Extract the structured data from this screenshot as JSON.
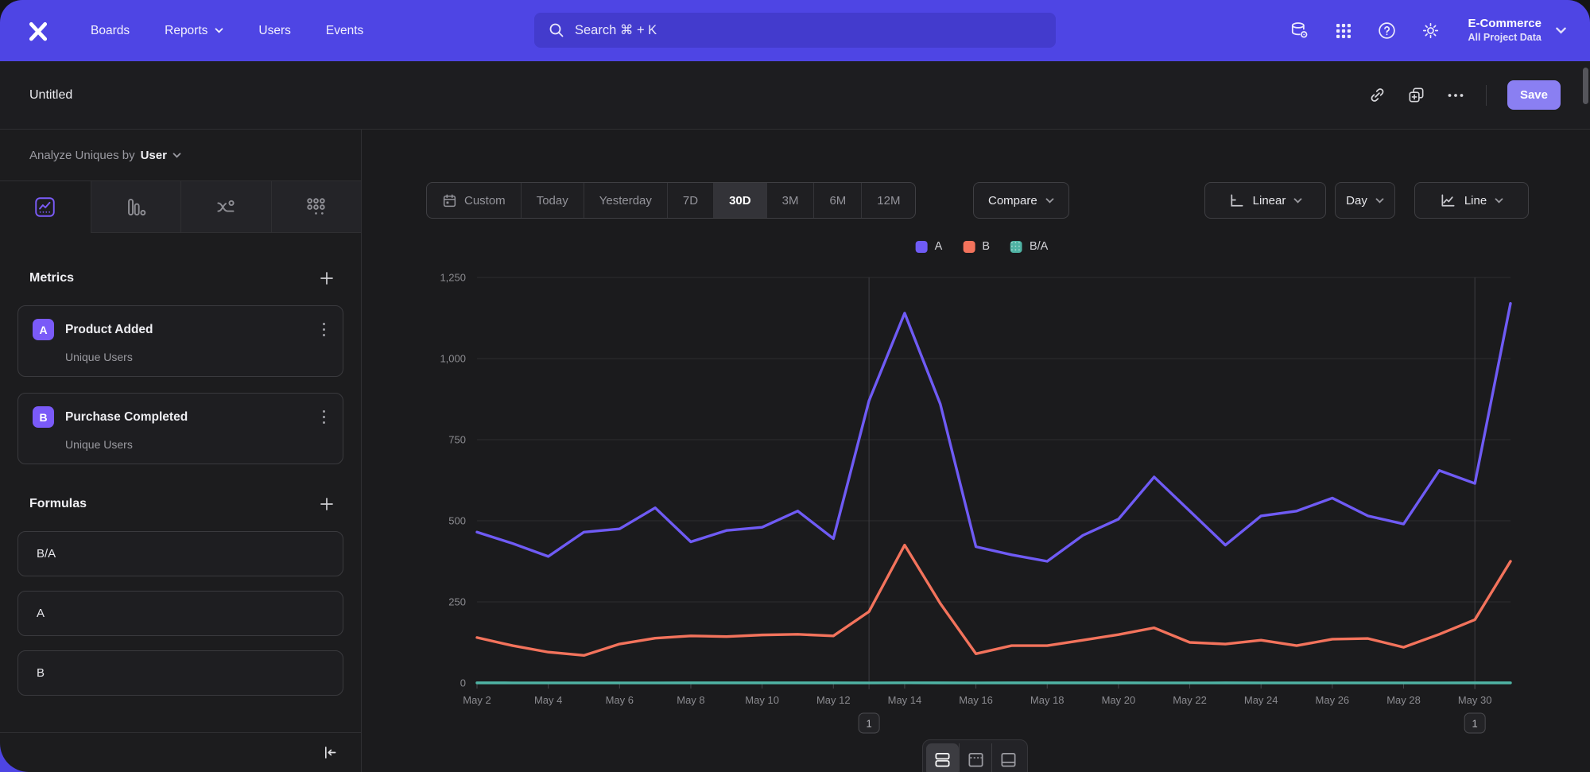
{
  "nav": {
    "items": [
      "Boards",
      "Reports",
      "Users",
      "Events"
    ],
    "search_placeholder": "Search  ⌘ + K",
    "project_name": "E-Commerce",
    "project_scope": "All Project Data"
  },
  "header": {
    "title": "Untitled",
    "save": "Save"
  },
  "sidebar": {
    "analyze_prefix": "Analyze Uniques by",
    "analyze_value": "User",
    "metrics_heading": "Metrics",
    "metrics": [
      {
        "badge": "A",
        "name": "Product Added",
        "measure": "Unique Users"
      },
      {
        "badge": "B",
        "name": "Purchase Completed",
        "measure": "Unique Users"
      }
    ],
    "formulas_heading": "Formulas",
    "formulas": [
      {
        "name": "B/A"
      },
      {
        "name": "A"
      },
      {
        "name": "B"
      }
    ]
  },
  "controls": {
    "date_ranges": [
      "Custom",
      "Today",
      "Yesterday",
      "7D",
      "30D",
      "3M",
      "6M",
      "12M"
    ],
    "selected_range": "30D",
    "compare": "Compare",
    "scale": "Linear",
    "interval": "Day",
    "chart_type": "Line"
  },
  "colors": {
    "nav_purple": "#4E45E4",
    "accent_purple": "#7A5AF8",
    "save_purple": "#8A7FF2",
    "series_a": "#6F5BF5",
    "series_b": "#F3735C",
    "series_ba": "#4FB3A4"
  },
  "chart_data": {
    "type": "line",
    "title": "",
    "xlabel": "",
    "ylabel": "",
    "ylim": [
      0,
      1250
    ],
    "yticks": [
      0,
      250,
      500,
      750,
      1000,
      1250
    ],
    "grid": "horizontal",
    "legend_position": "top-center",
    "x": [
      "May 2",
      "May 3",
      "May 4",
      "May 5",
      "May 6",
      "May 7",
      "May 8",
      "May 9",
      "May 10",
      "May 11",
      "May 12",
      "May 13",
      "May 14",
      "May 15",
      "May 16",
      "May 17",
      "May 18",
      "May 19",
      "May 20",
      "May 21",
      "May 22",
      "May 23",
      "May 24",
      "May 25",
      "May 26",
      "May 27",
      "May 28",
      "May 29",
      "May 30",
      "May 31"
    ],
    "x_tick_every": 2,
    "series": [
      {
        "name": "A",
        "color": "#6F5BF5",
        "values": [
          465,
          430,
          390,
          465,
          475,
          540,
          435,
          470,
          480,
          530,
          445,
          870,
          1140,
          860,
          420,
          395,
          375,
          455,
          505,
          635,
          530,
          425,
          515,
          530,
          570,
          515,
          490,
          655,
          615,
          1170
        ]
      },
      {
        "name": "B",
        "color": "#F3735C",
        "values": [
          140,
          115,
          95,
          85,
          120,
          138,
          145,
          143,
          148,
          150,
          145,
          220,
          425,
          245,
          90,
          115,
          115,
          132,
          149,
          170,
          125,
          120,
          132,
          115,
          135,
          137,
          110,
          150,
          195,
          375
        ]
      },
      {
        "name": "B/A",
        "color": "#4FB3A4",
        "values": [
          0.3,
          0.27,
          0.24,
          0.18,
          0.25,
          0.26,
          0.33,
          0.3,
          0.31,
          0.28,
          0.33,
          0.25,
          0.37,
          0.28,
          0.21,
          0.29,
          0.31,
          0.29,
          0.3,
          0.27,
          0.24,
          0.28,
          0.26,
          0.22,
          0.24,
          0.27,
          0.22,
          0.23,
          0.32,
          0.32
        ]
      }
    ],
    "annotations": [
      {
        "x": "May 13",
        "label": "1"
      },
      {
        "x": "May 30",
        "label": "1"
      }
    ]
  }
}
